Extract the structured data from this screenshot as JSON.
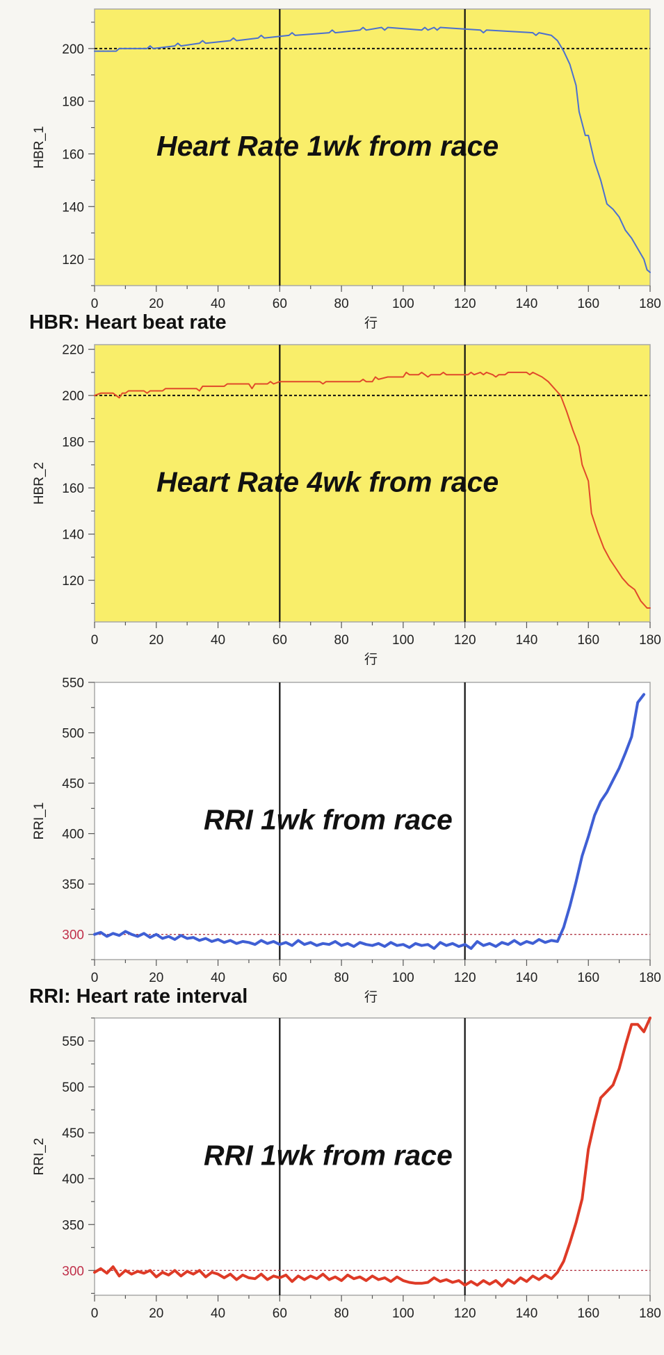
{
  "captions": {
    "hbr": "HBR: Heart beat rate",
    "rri": "RRI: Heart rate interval"
  },
  "chart_data": [
    {
      "type": "line",
      "id": "hbr1",
      "overlay_text": "Heart Rate 1wk from race",
      "xlabel": "行",
      "ylabel": "HBR_1",
      "xlim": [
        0,
        180
      ],
      "ylim": [
        110,
        215
      ],
      "xticks": [
        0,
        20,
        40,
        60,
        80,
        100,
        120,
        140,
        160,
        180
      ],
      "yticks": [
        120,
        140,
        160,
        180,
        200
      ],
      "background": "#f9ee6a",
      "line_color": "#4a6fd0",
      "line_style": "thin",
      "reference_line": {
        "y": 200,
        "color": "#111111"
      },
      "vertical_markers": [
        60,
        120
      ],
      "series": [
        {
          "x": [
            0,
            7,
            8,
            17,
            18,
            19,
            26,
            27,
            28,
            34,
            35,
            36,
            44,
            45,
            46,
            53,
            54,
            55,
            63,
            64,
            65,
            76,
            77,
            78,
            86,
            87,
            88,
            93,
            94,
            95,
            106,
            107,
            108,
            110,
            111,
            112,
            125,
            126,
            127,
            142,
            143,
            144,
            148,
            150,
            152,
            154,
            156,
            157,
            159,
            160,
            162,
            164,
            166,
            168,
            170,
            172,
            174,
            176,
            178,
            179,
            180
          ],
          "y": [
            199,
            199,
            200,
            200,
            201,
            200,
            201,
            202,
            201,
            202,
            203,
            202,
            203,
            204,
            203,
            204,
            205,
            204,
            205,
            206,
            205,
            206,
            207,
            206,
            207,
            208,
            207,
            208,
            207,
            208,
            207,
            208,
            207,
            208,
            207,
            208,
            207,
            206,
            207,
            206,
            205,
            206,
            205,
            203,
            199,
            194,
            186,
            176,
            167,
            167,
            157,
            150,
            141,
            139,
            136,
            131,
            128,
            124,
            120,
            116,
            115
          ]
        }
      ]
    },
    {
      "type": "line",
      "id": "hbr2",
      "overlay_text": "Heart Rate 4wk from race",
      "xlabel": "行",
      "ylabel": "HBR_2",
      "xlim": [
        0,
        180
      ],
      "ylim": [
        102,
        222
      ],
      "xticks": [
        0,
        20,
        40,
        60,
        80,
        100,
        120,
        140,
        160,
        180
      ],
      "yticks": [
        120,
        140,
        160,
        180,
        200,
        220
      ],
      "background": "#f9ee6a",
      "line_color": "#e0492a",
      "line_style": "thin",
      "reference_line": {
        "y": 200,
        "color": "#111111"
      },
      "vertical_markers": [
        60,
        120
      ],
      "series": [
        {
          "x": [
            0,
            2,
            3,
            6,
            7,
            8,
            9,
            10,
            11,
            12,
            16,
            17,
            18,
            22,
            23,
            24,
            33,
            34,
            35,
            42,
            43,
            44,
            50,
            51,
            52,
            56,
            57,
            58,
            60,
            62,
            63,
            64,
            73,
            74,
            75,
            86,
            87,
            88,
            90,
            91,
            92,
            95,
            96,
            97,
            100,
            101,
            102,
            105,
            106,
            107,
            108,
            109,
            110,
            112,
            113,
            114,
            121,
            122,
            123,
            125,
            126,
            127,
            129,
            130,
            131,
            133,
            134,
            135,
            140,
            141,
            142,
            145,
            147,
            149,
            151,
            153,
            155,
            157,
            158,
            160,
            161,
            163,
            165,
            167,
            169,
            171,
            173,
            175,
            177,
            179,
            180
          ],
          "y": [
            200,
            201,
            201,
            201,
            200,
            199,
            201,
            201,
            202,
            202,
            202,
            201,
            202,
            202,
            203,
            203,
            203,
            202,
            204,
            204,
            205,
            205,
            205,
            203,
            205,
            205,
            206,
            205,
            206,
            206,
            206,
            206,
            206,
            205,
            206,
            206,
            207,
            206,
            206,
            208,
            207,
            208,
            208,
            208,
            208,
            210,
            209,
            209,
            210,
            209,
            208,
            209,
            209,
            209,
            210,
            209,
            209,
            210,
            209,
            210,
            209,
            210,
            209,
            208,
            209,
            209,
            210,
            210,
            210,
            209,
            210,
            208,
            206,
            203,
            200,
            193,
            185,
            178,
            170,
            163,
            149,
            141,
            134,
            129,
            125,
            121,
            118,
            116,
            111,
            108,
            108
          ]
        }
      ]
    },
    {
      "type": "line",
      "id": "rri1",
      "overlay_text": "RRI 1wk from race",
      "xlabel": "行",
      "ylabel": "RRI_1",
      "xlim": [
        0,
        180
      ],
      "ylim": [
        275,
        550
      ],
      "xticks": [
        0,
        20,
        40,
        60,
        80,
        100,
        120,
        140,
        160,
        180
      ],
      "yticks": [
        300,
        350,
        400,
        450,
        500,
        550
      ],
      "highlight_ytick": 300,
      "background": "#ffffff",
      "line_color": "#3f5fd4",
      "line_style": "thick",
      "reference_line": {
        "y": 300,
        "color": "#b23a48"
      },
      "vertical_markers": [
        60,
        120
      ],
      "series": [
        {
          "x": [
            0,
            2,
            4,
            6,
            8,
            10,
            12,
            14,
            16,
            18,
            20,
            22,
            24,
            26,
            28,
            30,
            32,
            34,
            36,
            38,
            40,
            42,
            44,
            46,
            48,
            50,
            52,
            54,
            56,
            58,
            60,
            62,
            64,
            66,
            68,
            70,
            72,
            74,
            76,
            78,
            80,
            82,
            84,
            86,
            88,
            90,
            92,
            94,
            96,
            98,
            100,
            102,
            104,
            106,
            108,
            110,
            112,
            114,
            116,
            118,
            120,
            122,
            124,
            126,
            128,
            130,
            132,
            134,
            136,
            138,
            140,
            142,
            144,
            146,
            148,
            150,
            152,
            154,
            156,
            158,
            160,
            162,
            164,
            166,
            168,
            170,
            172,
            174,
            176,
            178
          ],
          "y": [
            300,
            302,
            298,
            301,
            299,
            303,
            300,
            298,
            301,
            297,
            300,
            296,
            298,
            295,
            299,
            296,
            297,
            294,
            296,
            293,
            295,
            292,
            294,
            291,
            293,
            292,
            290,
            294,
            291,
            293,
            290,
            292,
            289,
            294,
            290,
            292,
            289,
            291,
            290,
            293,
            289,
            291,
            288,
            292,
            290,
            289,
            291,
            288,
            292,
            289,
            290,
            287,
            291,
            289,
            290,
            286,
            292,
            289,
            291,
            288,
            290,
            286,
            293,
            289,
            291,
            288,
            292,
            290,
            294,
            290,
            293,
            291,
            295,
            292,
            294,
            293,
            307,
            328,
            352,
            378,
            397,
            418,
            432,
            441,
            453,
            465,
            480,
            496,
            530,
            538
          ]
        }
      ]
    },
    {
      "type": "line",
      "id": "rri2",
      "overlay_text": "RRI 1wk from race",
      "xlabel": "",
      "ylabel": "RRI_2",
      "xlim": [
        0,
        180
      ],
      "ylim": [
        273,
        575
      ],
      "xticks": [
        0,
        20,
        40,
        60,
        80,
        100,
        120,
        140,
        160,
        180
      ],
      "yticks": [
        300,
        350,
        400,
        450,
        500,
        550
      ],
      "highlight_ytick": 300,
      "background": "#ffffff",
      "line_color": "#de3a26",
      "line_style": "thick",
      "reference_line": {
        "y": 300,
        "color": "#b23a48"
      },
      "vertical_markers": [
        60,
        120
      ],
      "series": [
        {
          "x": [
            0,
            2,
            4,
            6,
            8,
            10,
            12,
            14,
            16,
            18,
            20,
            22,
            24,
            26,
            28,
            30,
            32,
            34,
            36,
            38,
            40,
            42,
            44,
            46,
            48,
            50,
            52,
            54,
            56,
            58,
            60,
            62,
            64,
            66,
            68,
            70,
            72,
            74,
            76,
            78,
            80,
            82,
            84,
            86,
            88,
            90,
            92,
            94,
            96,
            98,
            100,
            102,
            104,
            106,
            108,
            110,
            112,
            114,
            116,
            118,
            120,
            122,
            124,
            126,
            128,
            130,
            132,
            134,
            136,
            138,
            140,
            142,
            144,
            146,
            148,
            150,
            152,
            154,
            156,
            158,
            160,
            162,
            164,
            166,
            168,
            170,
            172,
            174,
            176,
            178,
            180
          ],
          "y": [
            298,
            302,
            297,
            304,
            294,
            300,
            296,
            299,
            297,
            300,
            293,
            298,
            295,
            300,
            294,
            299,
            296,
            300,
            293,
            298,
            296,
            292,
            296,
            290,
            295,
            292,
            291,
            296,
            290,
            294,
            292,
            295,
            288,
            294,
            290,
            294,
            291,
            296,
            290,
            293,
            289,
            295,
            291,
            293,
            289,
            294,
            290,
            292,
            288,
            293,
            289,
            287,
            286,
            286,
            287,
            292,
            288,
            290,
            287,
            289,
            284,
            288,
            284,
            289,
            285,
            289,
            283,
            290,
            286,
            292,
            288,
            294,
            290,
            295,
            291,
            298,
            310,
            330,
            352,
            378,
            432,
            462,
            488,
            495,
            502,
            520,
            545,
            568,
            568,
            560,
            575
          ]
        }
      ]
    }
  ]
}
